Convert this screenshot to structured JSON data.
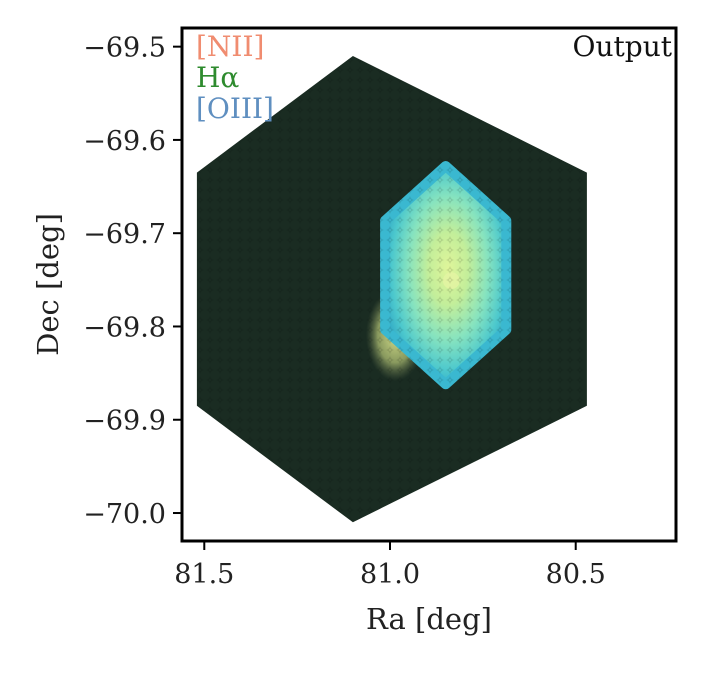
{
  "chart_data": {
    "type": "heatmap",
    "panel_label": "Output",
    "xlabel": "Ra [deg]",
    "ylabel": "Dec [deg]",
    "x_ticks": [
      81.5,
      81.0,
      80.5
    ],
    "x_tick_labels": [
      "81.5",
      "81.0",
      "80.5"
    ],
    "y_ticks": [
      -69.5,
      -69.6,
      -69.7,
      -69.8,
      -69.9,
      -70.0
    ],
    "y_tick_labels": [
      "−69.5",
      "−69.6",
      "−69.7",
      "−69.8",
      "−69.9",
      "−70.0"
    ],
    "xlim": [
      81.56,
      80.23
    ],
    "ylim": [
      -70.03,
      -69.48
    ],
    "x_inverted": true,
    "grid": false,
    "legend_position": "top-left",
    "legend": [
      {
        "label": "[NII]",
        "color": "#f08c70"
      },
      {
        "label": "Hα",
        "color": "#2e8b2e"
      },
      {
        "label": "[OIII]",
        "color": "#5f8fc0"
      }
    ],
    "field_outline": {
      "shape": "hexagon",
      "vertices_ra_dec": [
        [
          81.1,
          -69.51
        ],
        [
          80.47,
          -69.635
        ],
        [
          80.47,
          -69.885
        ],
        [
          81.1,
          -70.01
        ],
        [
          81.52,
          -69.885
        ],
        [
          81.52,
          -69.635
        ]
      ]
    },
    "emission_region": {
      "center_ra_dec": [
        80.85,
        -69.745
      ],
      "radius_deg": 0.13,
      "colors": {
        "background": "#1a2c22",
        "core": "#d8f08e",
        "mid": "#7ee0c2",
        "edge": "#3ab8d0",
        "left_lobe": "#c8d880"
      }
    }
  }
}
